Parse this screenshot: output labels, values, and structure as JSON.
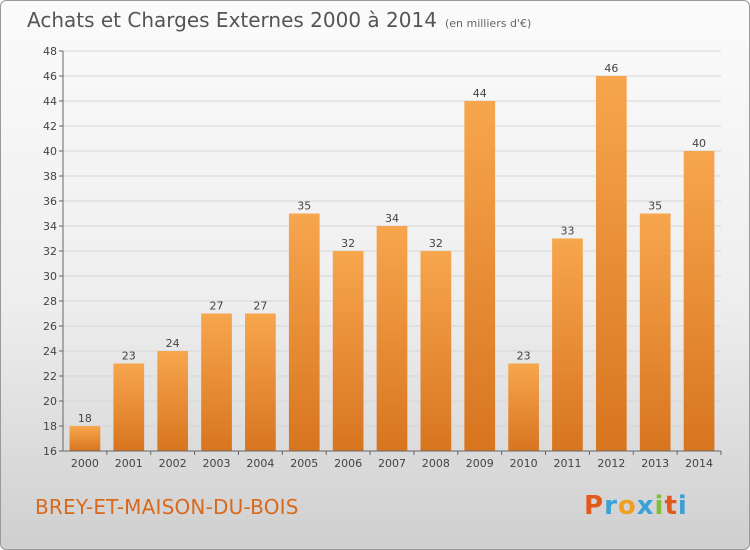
{
  "header": {
    "title": "Achats et Charges Externes 2000 à 2014",
    "subtitle": "(en milliers d'€)"
  },
  "footer": {
    "commune": "BREY-ET-MAISON-DU-BOIS",
    "logo": "Proxiti"
  },
  "colors": {
    "bar_top": "#f7a64e",
    "bar_bottom": "#d8751f",
    "commune_text": "#d9691a",
    "logo_letters": [
      "#e05a1c",
      "#3aa0d8",
      "#f0a020",
      "#3aa0d8",
      "#7fbf3a",
      "#e05a1c",
      "#3aa0d8"
    ]
  },
  "chart_data": {
    "type": "bar",
    "categories": [
      "2000",
      "2001",
      "2002",
      "2003",
      "2004",
      "2005",
      "2006",
      "2007",
      "2008",
      "2009",
      "2010",
      "2011",
      "2012",
      "2013",
      "2014"
    ],
    "values": [
      18,
      23,
      24,
      27,
      27,
      35,
      32,
      34,
      32,
      44,
      23,
      33,
      46,
      35,
      40
    ],
    "title": "Achats et Charges Externes 2000 à 2014",
    "ylim": [
      16,
      48
    ],
    "yticks": [
      16,
      18,
      20,
      22,
      24,
      26,
      28,
      30,
      32,
      34,
      36,
      38,
      40,
      42,
      44,
      46,
      48
    ],
    "grid": true,
    "data_labels": true
  }
}
